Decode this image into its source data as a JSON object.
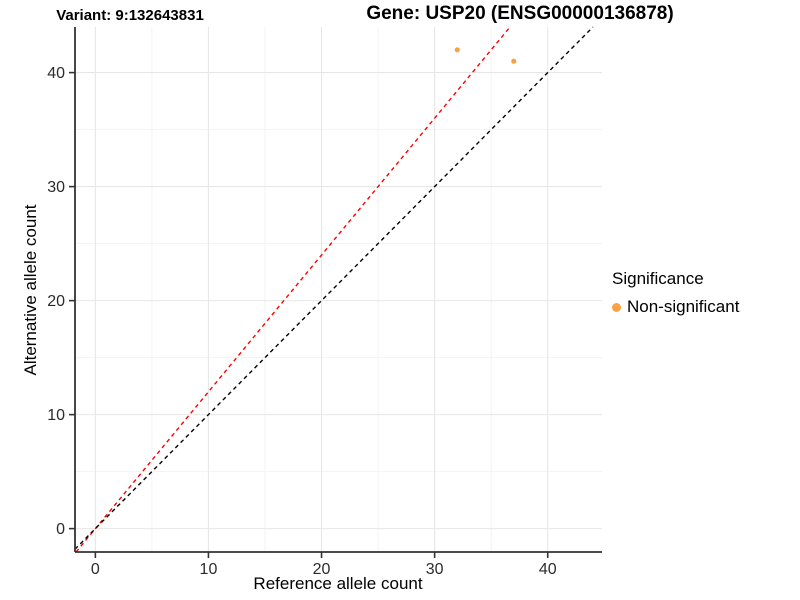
{
  "chart_data": {
    "type": "scatter",
    "title_left": "Variant: 9:132643831",
    "title_right": "Gene: USP20 (ENSG00000136878)",
    "xlabel": "Reference allele count",
    "ylabel": "Alternative allele count",
    "xlim": [
      -1.8,
      44.8
    ],
    "ylim": [
      -2.05,
      44.0
    ],
    "x_ticks": [
      0,
      10,
      20,
      30,
      40
    ],
    "y_ticks": [
      0,
      10,
      20,
      30,
      40
    ],
    "x_minor_ticks": [
      5,
      15,
      25,
      35
    ],
    "y_minor_ticks": [
      5,
      15,
      25,
      35
    ],
    "grid": "major+minor",
    "points": [
      {
        "x": 32,
        "y": 42,
        "series": "Non-significant"
      },
      {
        "x": 37,
        "y": 41,
        "series": "Non-significant"
      }
    ],
    "lines": [
      {
        "name": "alt-ref-ratio-line",
        "slope": 1.2,
        "intercept": 0,
        "color": "#ff0000",
        "style": "dashed"
      },
      {
        "name": "identity-line",
        "slope": 1.0,
        "intercept": 0,
        "color": "#000000",
        "style": "dashed"
      }
    ],
    "legend": {
      "title": "Significance",
      "position": "right",
      "items": [
        {
          "label": "Non-significant",
          "color": "#F9A242"
        }
      ]
    },
    "colors": {
      "point": "#F9A242",
      "grid_major": "#E7E7E7",
      "grid_minor": "#F2F2F2",
      "axis_line": "#333333",
      "tick_label": "#2b2b2b"
    }
  }
}
